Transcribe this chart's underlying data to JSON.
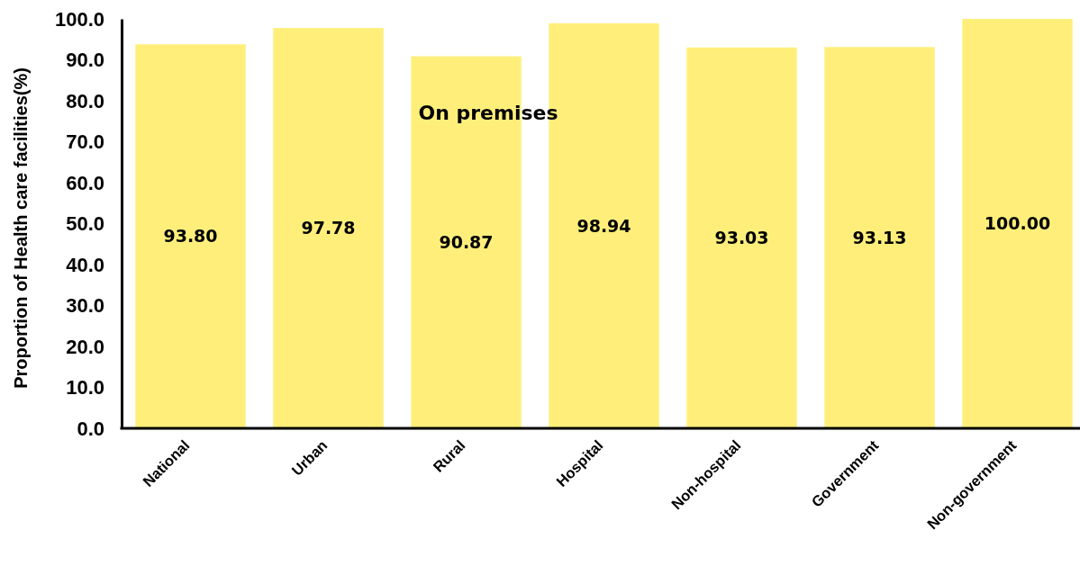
{
  "chart_data": {
    "type": "bar",
    "title": "On premises",
    "ylabel": "Proportion of Health care facilities(%)",
    "categories": [
      "National",
      "Urban",
      "Rural",
      "Hospital",
      "Non-hospital",
      "Government",
      "Non-government"
    ],
    "values": [
      93.8,
      97.78,
      90.87,
      98.94,
      93.03,
      93.13,
      100.0
    ],
    "value_labels": [
      "93.80",
      "97.78",
      "90.87",
      "98.94",
      "93.03",
      "93.13",
      "100.00"
    ],
    "color": "#ffef7a",
    "ylim": [
      0,
      100
    ],
    "yticks": [
      {
        "value": 0,
        "label": "0.0"
      },
      {
        "value": 10,
        "label": "10.0"
      },
      {
        "value": 20,
        "label": "20.0"
      },
      {
        "value": 30,
        "label": "30.0"
      },
      {
        "value": 40,
        "label": "40.0"
      },
      {
        "value": 50,
        "label": "50.0"
      },
      {
        "value": 60,
        "label": "60.0"
      },
      {
        "value": 70,
        "label": "70.0"
      },
      {
        "value": 80,
        "label": "80.0"
      },
      {
        "value": 90,
        "label": "90.0"
      },
      {
        "value": 100,
        "label": "100.0"
      }
    ]
  }
}
